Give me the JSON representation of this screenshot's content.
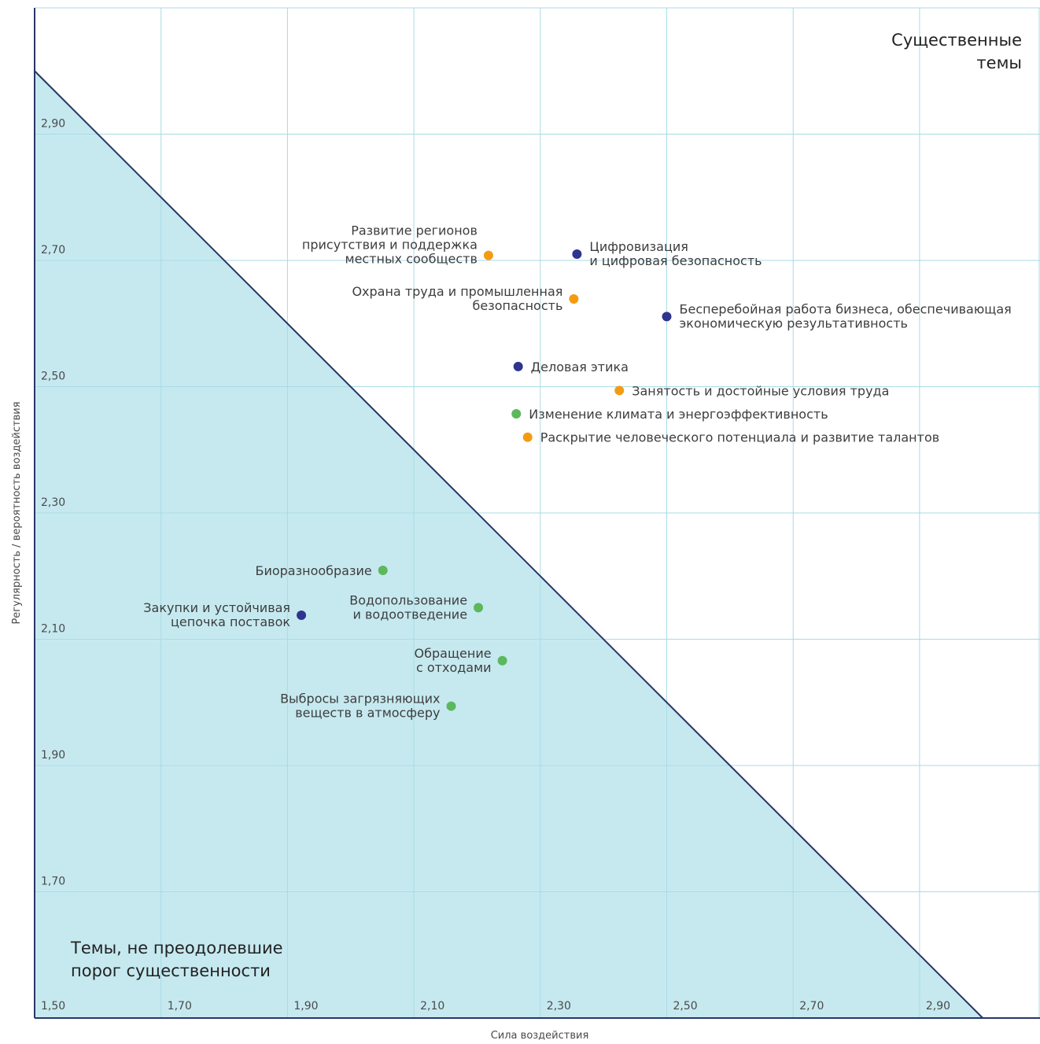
{
  "chart_data": {
    "type": "scatter",
    "title": "",
    "xlabel": "Сила воздействия",
    "ylabel": "Регулярность / вероятность воздействия",
    "xlim": [
      1.5,
      3.09
    ],
    "ylim": [
      1.5,
      3.09
    ],
    "grid": true,
    "x_ticks": [
      "1,50",
      "1,70",
      "1,90",
      "2,10",
      "2,30",
      "2,50",
      "2,70",
      "2,90"
    ],
    "y_ticks": [
      "1,70",
      "1,90",
      "2,10",
      "2,30",
      "2,50",
      "2,70",
      "2,90"
    ],
    "tick_values": [
      1.5,
      1.7,
      1.9,
      2.1,
      2.3,
      2.5,
      2.7,
      2.9
    ],
    "threshold_line": [
      [
        1.5,
        3.0
      ],
      [
        3.0,
        1.5
      ]
    ],
    "zone_labels": {
      "material": [
        "Существенные",
        "темы"
      ],
      "non_material": [
        "Темы, не преодолевшие",
        "порог существенности"
      ]
    },
    "colors": {
      "navy": "#2d3590",
      "orange": "#f39c12",
      "green": "#5cb85c",
      "grid": "#a9dbe6",
      "fill": "#c6e9f0",
      "line": "#2a3566"
    },
    "points": [
      {
        "x": 2.218,
        "y": 2.708,
        "color": "orange",
        "label": [
          "Развитие регионов",
          "присутствия и поддержка",
          "местных сообществ"
        ],
        "anchor": "left"
      },
      {
        "x": 2.358,
        "y": 2.71,
        "color": "navy",
        "label": [
          "Цифровизация",
          "и цифровая безопасность"
        ],
        "anchor": "right"
      },
      {
        "x": 2.353,
        "y": 2.639,
        "color": "orange",
        "label": [
          "Охрана труда и промышленная",
          "безопасность"
        ],
        "anchor": "left"
      },
      {
        "x": 2.5,
        "y": 2.611,
        "color": "navy",
        "label": [
          "Бесперебойная работа бизнеса, обеспечивающая",
          "экономическую результативность"
        ],
        "anchor": "right"
      },
      {
        "x": 2.265,
        "y": 2.532,
        "color": "navy",
        "label": [
          "Деловая этика"
        ],
        "anchor": "right"
      },
      {
        "x": 2.425,
        "y": 2.494,
        "color": "orange",
        "label": [
          "Занятость и достойные условия труда"
        ],
        "anchor": "right"
      },
      {
        "x": 2.262,
        "y": 2.457,
        "color": "green",
        "label": [
          "Изменение климата и энергоэффективность"
        ],
        "anchor": "right"
      },
      {
        "x": 2.28,
        "y": 2.42,
        "color": "orange",
        "label": [
          "Раскрытие человеческого потенциала и развитие талантов"
        ],
        "anchor": "right"
      },
      {
        "x": 2.051,
        "y": 2.209,
        "color": "green",
        "label": [
          "Биоразнообразие"
        ],
        "anchor": "left"
      },
      {
        "x": 1.922,
        "y": 2.138,
        "color": "navy",
        "label": [
          "Закупки и устойчивая",
          "цепочка поставок"
        ],
        "anchor": "left"
      },
      {
        "x": 2.202,
        "y": 2.15,
        "color": "green",
        "label": [
          "Водопользование",
          "и водоотведение"
        ],
        "anchor": "left"
      },
      {
        "x": 2.24,
        "y": 2.066,
        "color": "green",
        "label": [
          "Обращение",
          "с отходами"
        ],
        "anchor": "left"
      },
      {
        "x": 2.159,
        "y": 1.994,
        "color": "green",
        "label": [
          "Выбросы загрязняющих",
          "веществ в атмосферу"
        ],
        "anchor": "left"
      }
    ]
  }
}
